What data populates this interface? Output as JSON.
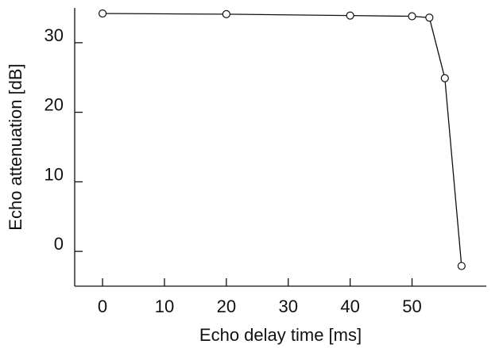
{
  "chart_data": {
    "type": "line",
    "title": "",
    "xlabel": "Echo delay time [ms]",
    "ylabel": "Echo attenuation [dB]",
    "xlim": [
      -4.5,
      62
    ],
    "ylim": [
      -5,
      35
    ],
    "x_ticks": [
      0,
      10,
      20,
      30,
      40,
      50
    ],
    "y_ticks": [
      0,
      10,
      20,
      30
    ],
    "x_tick_labels": [
      "0",
      "10",
      "20",
      "30",
      "40",
      "50"
    ],
    "y_tick_labels": [
      "0",
      "10",
      "20",
      "30"
    ],
    "grid": false,
    "legend": "none",
    "marker": "open-circle",
    "series": [
      {
        "x": [
          0,
          20,
          40,
          50,
          52.8,
          55.3,
          58
        ],
        "values": [
          34.2,
          34.1,
          33.9,
          33.8,
          33.6,
          24.9,
          -2.1
        ]
      }
    ]
  }
}
